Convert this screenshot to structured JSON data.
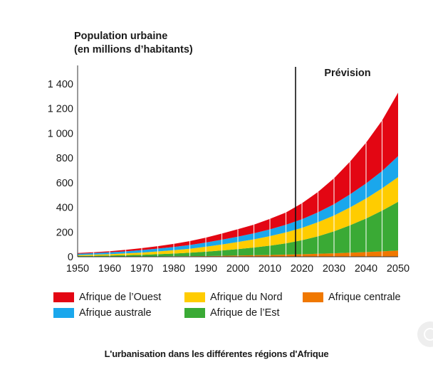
{
  "y_axis_title_line1": "Population urbaine",
  "y_axis_title_line2": "(en millions d’habitants)",
  "caption": "L'urbanisation dans les différentes régions d'Afrique",
  "legend": [
    {
      "label": "Afrique de l’Ouest",
      "color": "#e30613"
    },
    {
      "label": "Afrique du Nord",
      "color": "#ffcc00"
    },
    {
      "label": "Afrique centrale",
      "color": "#f07800"
    },
    {
      "label": "Afrique australe",
      "color": "#1aa7ec"
    },
    {
      "label": "Afrique de l’Est",
      "color": "#3aaa35"
    }
  ],
  "chart_data": {
    "type": "area",
    "stacked": true,
    "x": [
      1950,
      1955,
      1960,
      1965,
      1970,
      1975,
      1980,
      1985,
      1990,
      1995,
      2000,
      2005,
      2010,
      2015,
      2020,
      2025,
      2030,
      2035,
      2040,
      2045,
      2050
    ],
    "series": [
      {
        "name": "Afrique centrale",
        "color": "#f07800",
        "values": [
          1,
          1,
          1,
          2,
          2,
          3,
          4,
          5,
          6,
          8,
          10,
          12,
          14,
          17,
          20,
          24,
          28,
          33,
          38,
          44,
          50
        ]
      },
      {
        "name": "Afrique de l’Est",
        "color": "#3aaa35",
        "values": [
          5,
          7,
          9,
          11,
          14,
          18,
          22,
          28,
          35,
          43,
          52,
          63,
          76,
          92,
          114,
          142,
          178,
          222,
          272,
          330,
          395
        ]
      },
      {
        "name": "Afrique du Nord",
        "color": "#ffcc00",
        "values": [
          7,
          9,
          11,
          14,
          18,
          22,
          27,
          32,
          40,
          48,
          57,
          66,
          77,
          88,
          100,
          114,
          128,
          145,
          162,
          180,
          200
        ]
      },
      {
        "name": "Afrique australe",
        "color": "#1aa7ec",
        "values": [
          12,
          13,
          15,
          17,
          20,
          23,
          26,
          30,
          34,
          39,
          44,
          49,
          55,
          62,
          70,
          80,
          92,
          106,
          122,
          140,
          170
        ]
      },
      {
        "name": "Afrique de l’Ouest",
        "color": "#e30613",
        "values": [
          5,
          7,
          9,
          12,
          16,
          20,
          25,
          32,
          40,
          50,
          60,
          70,
          85,
          100,
          130,
          165,
          210,
          265,
          330,
          410,
          515
        ]
      }
    ],
    "xlabel": "",
    "ylabel": "Population urbaine (en millions d’habitants)",
    "ylim": [
      0,
      1400
    ],
    "yticks": [
      0,
      200,
      400,
      600,
      800,
      1000,
      1200,
      1400
    ],
    "ytick_labels": [
      "0",
      "200",
      "400",
      "600",
      "800",
      "1 000",
      "1 200",
      "1 400"
    ],
    "xticks": [
      1950,
      1960,
      1970,
      1980,
      1990,
      2000,
      2010,
      2020,
      2030,
      2040,
      2050
    ],
    "xtick_labels": [
      "1950",
      "1960",
      "1970",
      "1980",
      "1990",
      "2000",
      "2010",
      "2020",
      "2030",
      "2040",
      "2050"
    ],
    "annotation": {
      "x": 2018,
      "label": "Prévision"
    },
    "grid": false
  }
}
